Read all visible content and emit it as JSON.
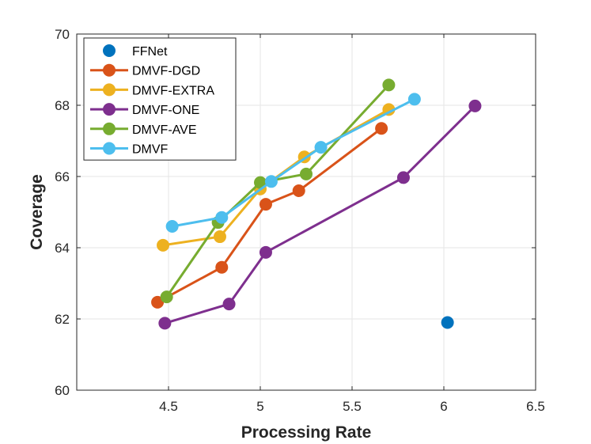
{
  "chart_data": {
    "type": "line",
    "xlabel": "Processing Rate",
    "ylabel": "Coverage",
    "xlim": [
      4.0,
      6.5
    ],
    "ylim": [
      60,
      70
    ],
    "xticks": [
      4.5,
      5,
      5.5,
      6,
      6.5
    ],
    "xtick_labels": [
      "4.5",
      "5",
      "5.5",
      "6",
      "6.5"
    ],
    "yticks": [
      60,
      62,
      64,
      66,
      68,
      70
    ],
    "ytick_labels": [
      "60",
      "62",
      "64",
      "66",
      "68",
      "70"
    ],
    "grid": true,
    "legend_position": "top-left",
    "series": [
      {
        "name": "FFNet",
        "color": "#0072BD",
        "marker_only": true,
        "x": [
          6.02
        ],
        "y": [
          61.9
        ]
      },
      {
        "name": "DMVF-DGD",
        "color": "#D95319",
        "x": [
          4.44,
          4.79,
          5.03,
          5.21,
          5.66
        ],
        "y": [
          62.47,
          63.45,
          65.22,
          65.6,
          67.35
        ]
      },
      {
        "name": "DMVF-EXTRA",
        "color": "#EDB120",
        "x": [
          4.47,
          4.78,
          5.0,
          5.24,
          5.7
        ],
        "y": [
          64.07,
          64.31,
          65.65,
          66.55,
          67.88
        ]
      },
      {
        "name": "DMVF-ONE",
        "color": "#7E2F8E",
        "x": [
          4.48,
          4.83,
          5.03,
          5.78,
          6.17
        ],
        "y": [
          61.88,
          62.42,
          63.87,
          65.97,
          67.98
        ]
      },
      {
        "name": "DMVF-AVE",
        "color": "#77AC30",
        "x": [
          4.49,
          4.77,
          5.0,
          5.25,
          5.7
        ],
        "y": [
          62.62,
          64.71,
          65.83,
          66.07,
          68.57
        ]
      },
      {
        "name": "DMVF",
        "color": "#4DBEEE",
        "x": [
          4.52,
          4.79,
          5.06,
          5.33,
          5.84
        ],
        "y": [
          64.6,
          64.85,
          65.86,
          66.82,
          68.17
        ]
      }
    ]
  }
}
